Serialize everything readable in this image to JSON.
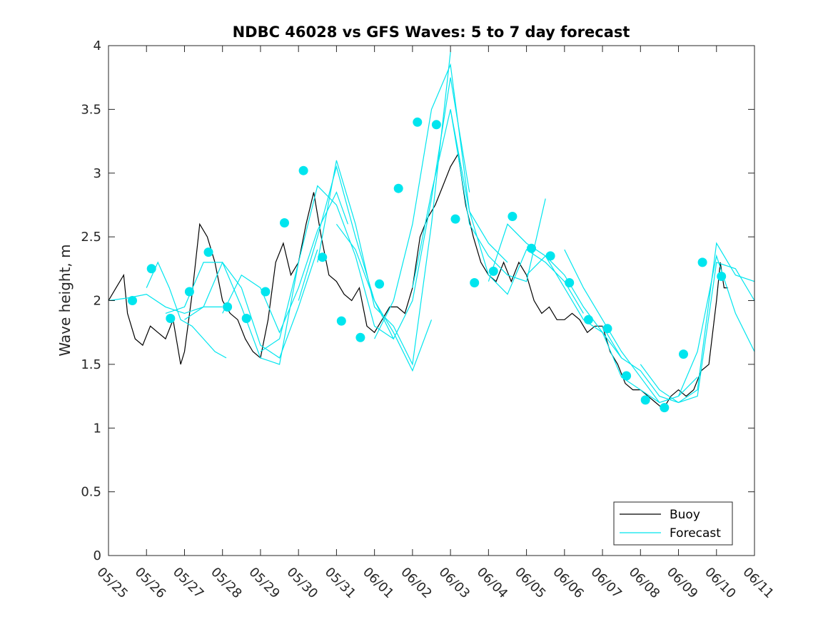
{
  "chart_data": {
    "type": "line",
    "title": "NDBC 46028 vs GFS Waves: 5 to 7 day forecast",
    "xlabel": "",
    "ylabel": "Wave height, m",
    "xlim": [
      0,
      17
    ],
    "ylim": [
      0,
      4
    ],
    "x_tick_labels": [
      "05/25",
      "05/26",
      "05/27",
      "05/28",
      "05/29",
      "05/30",
      "05/31",
      "06/01",
      "06/02",
      "06/03",
      "06/04",
      "06/05",
      "06/06",
      "06/07",
      "06/08",
      "06/09",
      "06/10",
      "06/11"
    ],
    "y_ticks": [
      0,
      0.5,
      1,
      1.5,
      2,
      2.5,
      3,
      3.5,
      4
    ],
    "y_tick_labels": [
      "0",
      "0.5",
      "1",
      "1.5",
      "2",
      "2.5",
      "3",
      "3.5",
      "4"
    ],
    "grid": false,
    "legend": {
      "position": "bottom-right",
      "entries": [
        "Buoy",
        "Forecast"
      ]
    },
    "colors": {
      "buoy": "#000000",
      "forecast": "#00e5ee",
      "axis": "#262626"
    },
    "series": [
      {
        "name": "Buoy",
        "x": [
          0,
          0.2,
          0.4,
          0.5,
          0.7,
          0.9,
          1.1,
          1.3,
          1.5,
          1.7,
          1.9,
          2.0,
          2.2,
          2.4,
          2.6,
          2.8,
          3.0,
          3.2,
          3.4,
          3.6,
          3.8,
          4.0,
          4.2,
          4.4,
          4.6,
          4.8,
          5.0,
          5.2,
          5.4,
          5.6,
          5.8,
          6.0,
          6.2,
          6.4,
          6.6,
          6.8,
          7.0,
          7.2,
          7.4,
          7.6,
          7.8,
          8.0,
          8.2,
          8.4,
          8.6,
          8.8,
          9.0,
          9.2,
          9.4,
          9.6,
          9.8,
          10.0,
          10.2,
          10.4,
          10.6,
          10.8,
          11.0,
          11.2,
          11.4,
          11.6,
          11.8,
          12.0,
          12.2,
          12.4,
          12.6,
          12.8,
          13.0,
          13.2,
          13.4,
          13.6,
          13.8,
          14.0,
          14.2,
          14.4,
          14.6,
          14.8,
          15.0,
          15.2,
          15.4,
          15.6,
          15.8,
          16.0,
          16.1,
          16.2,
          16.3
        ],
        "values": [
          2.0,
          2.1,
          2.2,
          1.9,
          1.7,
          1.65,
          1.8,
          1.75,
          1.7,
          1.85,
          1.5,
          1.6,
          2.05,
          2.6,
          2.5,
          2.3,
          2.0,
          1.9,
          1.85,
          1.7,
          1.6,
          1.55,
          1.85,
          2.3,
          2.45,
          2.2,
          2.3,
          2.6,
          2.85,
          2.5,
          2.2,
          2.15,
          2.05,
          2.0,
          2.1,
          1.8,
          1.75,
          1.85,
          1.95,
          1.95,
          1.9,
          2.1,
          2.5,
          2.65,
          2.75,
          2.9,
          3.05,
          3.15,
          2.75,
          2.5,
          2.3,
          2.2,
          2.15,
          2.3,
          2.15,
          2.3,
          2.2,
          2.0,
          1.9,
          1.95,
          1.85,
          1.85,
          1.9,
          1.85,
          1.75,
          1.8,
          1.8,
          1.6,
          1.5,
          1.35,
          1.3,
          1.3,
          1.25,
          1.2,
          1.15,
          1.25,
          1.3,
          1.25,
          1.3,
          1.45,
          1.5,
          2.0,
          2.3,
          2.1,
          2.1
        ]
      },
      {
        "name": "Forecast",
        "segments": [
          {
            "x": [
              0,
              0.5,
              1,
              1.5,
              2,
              2.5,
              3
            ],
            "values": [
              2.0,
              2.02,
              2.05,
              1.95,
              1.9,
              1.95,
              1.95
            ]
          },
          {
            "x": [
              1,
              1.3,
              1.6,
              1.9,
              2.2,
              2.5,
              2.8,
              3.1
            ],
            "values": [
              2.1,
              2.3,
              2.1,
              1.85,
              1.8,
              1.7,
              1.6,
              1.55
            ]
          },
          {
            "x": [
              1.5,
              2,
              2.5,
              3,
              3.5,
              4,
              4.5,
              5
            ],
            "values": [
              1.9,
              1.95,
              2.3,
              2.3,
              1.95,
              1.55,
              1.5,
              2.3
            ]
          },
          {
            "x": [
              2,
              2.5,
              3,
              3.5,
              4,
              4.5,
              5,
              5.5
            ],
            "values": [
              1.85,
              1.95,
              2.3,
              2.1,
              1.65,
              1.55,
              1.95,
              2.4
            ]
          },
          {
            "x": [
              3,
              3.5,
              4,
              4.5,
              5,
              5.5,
              6,
              6.3
            ],
            "values": [
              1.9,
              2.2,
              2.1,
              1.75,
              2.1,
              2.55,
              2.85,
              2.6
            ]
          },
          {
            "x": [
              4,
              4.5,
              5,
              5.5,
              6,
              6.5,
              7,
              7.5
            ],
            "values": [
              1.6,
              1.7,
              2.3,
              2.9,
              2.75,
              2.35,
              1.8,
              1.7
            ]
          },
          {
            "x": [
              5,
              5.5,
              6,
              6.5,
              7,
              7.5,
              8,
              8.5
            ],
            "values": [
              2.0,
              2.5,
              3.05,
              2.5,
              2.0,
              1.75,
              1.45,
              1.85
            ]
          },
          {
            "x": [
              5.5,
              6,
              6.5,
              7,
              7.5,
              8,
              8.5,
              9
            ],
            "values": [
              2.3,
              3.1,
              2.6,
              1.95,
              1.8,
              1.5,
              2.6,
              3.95
            ]
          },
          {
            "x": [
              6,
              6.5,
              7,
              7.5,
              8,
              8.5,
              9,
              9.5
            ],
            "values": [
              2.6,
              2.4,
              2.0,
              1.7,
              2.0,
              2.8,
              3.75,
              2.85
            ]
          },
          {
            "x": [
              7,
              7.5,
              8,
              8.5,
              9,
              9.5,
              10,
              10.5
            ],
            "values": [
              1.7,
              2.0,
              2.6,
              3.5,
              3.85,
              2.7,
              2.45,
              2.3
            ]
          },
          {
            "x": [
              8,
              8.5,
              9,
              9.5,
              10,
              10.5,
              11,
              11.5
            ],
            "values": [
              2.1,
              2.85,
              3.5,
              2.6,
              2.35,
              2.2,
              2.15,
              2.8
            ]
          },
          {
            "x": [
              9,
              9.5,
              10,
              10.5,
              11,
              11.5,
              12,
              12.5
            ],
            "values": [
              3.5,
              2.7,
              2.2,
              2.05,
              2.4,
              2.3,
              2.15,
              1.9
            ]
          },
          {
            "x": [
              10,
              10.5,
              11,
              11.5,
              12,
              12.5,
              13,
              13.5
            ],
            "values": [
              2.15,
              2.6,
              2.45,
              2.35,
              2.1,
              1.85,
              1.75,
              1.55
            ]
          },
          {
            "x": [
              11,
              11.5,
              12,
              12.5,
              13,
              13.5,
              14,
              14.5
            ],
            "values": [
              2.2,
              2.35,
              2.2,
              1.95,
              1.75,
              1.4,
              1.3,
              1.2
            ]
          },
          {
            "x": [
              12,
              12.5,
              13,
              13.5,
              14,
              14.5,
              15,
              15.5
            ],
            "values": [
              2.4,
              2.1,
              1.85,
              1.6,
              1.4,
              1.2,
              1.25,
              1.4
            ]
          },
          {
            "x": [
              13,
              13.5,
              14,
              14.5,
              15,
              15.5,
              16,
              16.5,
              17
            ],
            "values": [
              1.8,
              1.55,
              1.45,
              1.25,
              1.2,
              1.3,
              2.45,
              2.2,
              2.15
            ]
          },
          {
            "x": [
              14,
              14.5,
              15,
              15.5,
              16,
              16.5,
              17
            ],
            "values": [
              1.5,
              1.3,
              1.2,
              1.25,
              2.3,
              2.25,
              2.0
            ]
          },
          {
            "x": [
              15,
              15.5,
              16,
              16.5,
              17
            ],
            "values": [
              1.25,
              1.6,
              2.35,
              1.9,
              1.6
            ]
          }
        ],
        "markers": {
          "x": [
            0.63,
            1.13,
            1.63,
            2.13,
            2.63,
            3.13,
            3.63,
            4.13,
            4.63,
            5.13,
            5.63,
            6.13,
            6.63,
            7.13,
            7.63,
            8.13,
            8.63,
            9.13,
            9.63,
            10.13,
            10.63,
            11.13,
            11.63,
            12.13,
            12.63,
            13.13,
            13.63,
            14.13,
            14.63,
            15.13,
            15.63,
            16.13
          ],
          "values": [
            2.0,
            2.25,
            1.86,
            2.07,
            2.38,
            1.95,
            1.86,
            2.07,
            2.61,
            3.02,
            2.34,
            1.84,
            1.71,
            2.13,
            2.88,
            3.4,
            3.38,
            2.64,
            2.14,
            2.23,
            2.66,
            2.41,
            2.35,
            2.14,
            1.85,
            1.78,
            1.41,
            1.22,
            1.16,
            1.58,
            2.3,
            2.19
          ]
        }
      }
    ]
  }
}
